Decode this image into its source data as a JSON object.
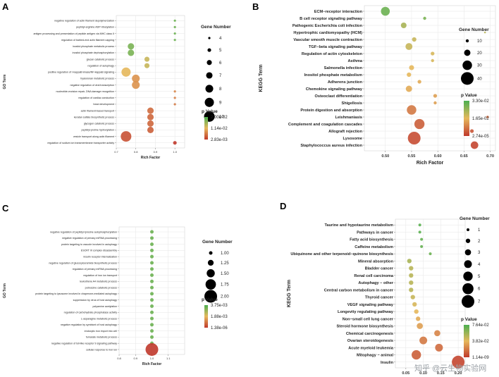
{
  "colors": {
    "high": "#4caf50",
    "mid": "#e6b85c",
    "low": "#c0392b",
    "grid": "#e6e6e6",
    "bg": "#ffffff"
  },
  "watermark": "知乎 @云生物实验网",
  "chart_data": [
    {
      "panel": "A",
      "type": "scatter",
      "xlabel": "Rich Factor",
      "ylabel": "GO Term",
      "xlim": [
        0.7,
        1.05
      ],
      "xticks": [
        "0.7",
        "0.8",
        "0.9",
        "1.0"
      ],
      "xtick_values": [
        0.7,
        0.8,
        0.9,
        1.0
      ],
      "size_title": "Gene Number",
      "size_labels": [
        "4",
        "5",
        "6",
        "7",
        "8",
        "9",
        "10"
      ],
      "size_values": [
        4,
        5,
        6,
        7,
        8,
        9,
        10
      ],
      "color_title": "p Value",
      "color_labels": [
        "2.00e-02",
        "1.14e-02",
        "2.83e-03"
      ],
      "terms": [
        "negative regulation of actin filament depolymerization",
        "peptidyl-arginine ADP-ribosylation",
        "antigen processing and presentation of peptide antigen via MHC class II",
        "regulation of barbed-end actin filament capping",
        "inositol phosphate metabolic process",
        "inositol phosphate dephosphorylation",
        "glucan catabolic process",
        "regulation of autophagy",
        "positive regulation of I-kappaB kinase/NF-kappaB signaling",
        "hyaluronan metabolic process",
        "negative regulation of viral transcription",
        "nucleotide-excision repair, DNA damage recognition",
        "regulation of cardiac conduction",
        "head development",
        "actin filament-based transport",
        "keratan sulfate biosynthetic process",
        "glycogen catabolic process",
        "peptidyl-proline hydroxylation",
        "vesicle transport along actin filament",
        "regulation of sodium ion transmembrane transporter activity"
      ],
      "x": [
        1.0,
        1.0,
        1.0,
        1.0,
        0.775,
        0.775,
        0.857,
        0.857,
        0.75,
        0.8,
        0.8,
        1.0,
        1.0,
        1.0,
        0.875,
        0.875,
        0.875,
        0.875,
        0.75,
        1.0
      ],
      "genes": [
        4,
        4,
        4,
        4,
        7,
        7,
        6,
        6,
        9,
        8,
        8,
        4,
        4,
        4,
        7,
        7,
        7,
        7,
        10,
        5
      ],
      "color": [
        0.1,
        0.1,
        0.1,
        0.1,
        0.15,
        0.15,
        0.4,
        0.4,
        0.5,
        0.65,
        0.65,
        0.7,
        0.72,
        0.75,
        0.8,
        0.82,
        0.82,
        0.85,
        0.9,
        1.0
      ]
    },
    {
      "panel": "B",
      "type": "scatter",
      "xlabel": "Rich Factor",
      "ylabel": "KEGG Term",
      "xlim": [
        0.46,
        0.71
      ],
      "xticks": [
        "0.50",
        "0.55",
        "0.60",
        "0.65",
        "0.70"
      ],
      "xtick_values": [
        0.5,
        0.55,
        0.6,
        0.65,
        0.7
      ],
      "size_title": "Gene Number",
      "size_labels": [
        "10",
        "20",
        "30",
        "40"
      ],
      "size_values": [
        10,
        20,
        30,
        40
      ],
      "color_title": "p Value",
      "color_labels": [
        "3.30e-02",
        "1.65e-02",
        "2.74e-05"
      ],
      "terms": [
        "ECM−receptor interaction",
        "B cell receptor signaling pathway",
        "Pathogenic Escherichia coli infection",
        "Hypertrophic cardiomyopathy (HCM)",
        "Vascular smooth muscle contraction",
        "TGF−beta signaling pathway",
        "Regulation of actin cytoskeleton",
        "Asthma",
        "Salmonella infection",
        "Inositol phosphate metabolism",
        "Adherens junction",
        "Chemokine signaling pathway",
        "Osteoclast differentiation",
        "Shigellosis",
        "Protein digestion and absorption",
        "Leishmaniasis",
        "Complement and coagulation cascades",
        "Allograft rejection",
        "Lysosome",
        "Staphylococcus aureus infection"
      ],
      "x": [
        0.5,
        0.575,
        0.535,
        0.69,
        0.555,
        0.545,
        0.59,
        0.59,
        0.55,
        0.545,
        0.565,
        0.545,
        0.595,
        0.595,
        0.55,
        0.695,
        0.565,
        0.665,
        0.555,
        0.67
      ],
      "genes": [
        28,
        10,
        18,
        6,
        14,
        22,
        12,
        10,
        16,
        14,
        12,
        20,
        12,
        10,
        30,
        8,
        32,
        12,
        40,
        24
      ],
      "color": [
        0.1,
        0.15,
        0.3,
        0.35,
        0.4,
        0.4,
        0.45,
        0.45,
        0.5,
        0.5,
        0.55,
        0.55,
        0.6,
        0.6,
        0.75,
        0.8,
        0.85,
        0.88,
        0.92,
        0.95
      ]
    },
    {
      "panel": "C",
      "type": "scatter",
      "xlabel": "Rich Factor",
      "ylabel": "GO Term",
      "xlim": [
        0.8,
        1.2
      ],
      "xticks": [
        "0.8",
        "0.9",
        "1.0",
        "1.1"
      ],
      "xtick_values": [
        0.8,
        0.9,
        1.0,
        1.1
      ],
      "size_title": "Gene Number",
      "size_labels": [
        "1.00",
        "1.25",
        "1.50",
        "1.75",
        "2.00"
      ],
      "size_values": [
        1.0,
        1.25,
        1.5,
        1.75,
        2.0
      ],
      "color_title": "p Value",
      "color_labels": [
        "3.75e-03",
        "1.88e-03",
        "1.38e-06"
      ],
      "terms": [
        "negative regulation of peptidyl-tyrosine autophosphorylation",
        "negative regulation of primary miRNA processing",
        "protein targeting to vacuole involved in autophagy",
        "ESCRT III complex disassembly",
        "insulin receptor internalization",
        "negative regulation of glucosylceramide biosynthetic process",
        "regulation of primary miRNA processing",
        "regulation of iron ion transport",
        "leukotriene A4 metabolic process",
        "putrescine catabolic process",
        "protein targeting to lysosome involved in chaperone-mediated autophagy",
        "suppression by virus of host autophagy",
        "polyamine acetylation",
        "regulation of carbohydrate phosphatase activity",
        "L-asparagine metabolic process",
        "negative regulation by symbiont of host autophagy",
        "endocytic iron import into cell",
        "fumarate metabolic process",
        "negative regulation of toll-like receptor 9 signaling pathway",
        "cellular response to iron ion"
      ],
      "x": [
        1.0,
        1.0,
        1.0,
        1.0,
        1.0,
        1.0,
        1.0,
        1.0,
        1.0,
        1.0,
        1.0,
        1.0,
        1.0,
        1.0,
        1.0,
        1.0,
        1.0,
        1.0,
        1.0,
        1.0
      ],
      "genes": [
        1,
        1,
        1,
        1,
        1,
        1,
        1,
        1,
        1,
        1,
        1,
        1,
        1,
        1,
        1,
        1,
        1,
        1,
        1,
        2
      ],
      "color": [
        0.1,
        0.1,
        0.1,
        0.1,
        0.1,
        0.1,
        0.1,
        0.1,
        0.1,
        0.1,
        0.1,
        0.1,
        0.1,
        0.1,
        0.1,
        0.1,
        0.1,
        0.1,
        0.1,
        1.0
      ]
    },
    {
      "panel": "D",
      "type": "scatter",
      "xlabel": "Rich Factor",
      "ylabel": "KEGG Term",
      "xlim": [
        0.02,
        0.22
      ],
      "xticks": [
        "0.05",
        "0.10",
        "0.15",
        "0.20"
      ],
      "xtick_values": [
        0.05,
        0.1,
        0.15,
        0.2
      ],
      "size_title": "Gene Number",
      "size_labels": [
        "1",
        "2",
        "3",
        "4",
        "5",
        "6",
        "7"
      ],
      "size_values": [
        1,
        2,
        3,
        4,
        5,
        6,
        7
      ],
      "color_title": "p Value",
      "color_labels": [
        "7.64e-02",
        "3.82e-02",
        "1.14e-09"
      ],
      "terms": [
        "Taurine and hypotaurine metabolism",
        "Pathways in cancer",
        "Fatty acid biosynthesis",
        "Caffeine metabolism",
        "Ubiquinone and other terpenoid−quinone biosynthesis",
        "Mineral absorption",
        "Bladder cancer",
        "Renal cell carcinoma",
        "Autophagy − other",
        "Central carbon metabolism in cancer",
        "Thyroid cancer",
        "VEGF signaling pathway",
        "Longevity regulating pathway",
        "Non−small cell lung cancer",
        "Steroid hormone biosynthesis",
        "Chemical carcinogenesis",
        "Ovarian steroidogenesis",
        "Acute myeloid leukemia",
        "Mitophagy − animal",
        "Insulin"
      ],
      "x": [
        0.09,
        0.09,
        0.095,
        0.095,
        0.12,
        0.06,
        0.065,
        0.065,
        0.065,
        0.065,
        0.07,
        0.075,
        0.08,
        0.085,
        0.09,
        0.14,
        0.1,
        0.145,
        0.08,
        0.2
      ],
      "genes": [
        1,
        1,
        1,
        1,
        1,
        2,
        2,
        2,
        2,
        2,
        2,
        2,
        2,
        2,
        3,
        3,
        4,
        4,
        5,
        7
      ],
      "color": [
        0.05,
        0.05,
        0.08,
        0.08,
        0.1,
        0.3,
        0.35,
        0.35,
        0.35,
        0.35,
        0.4,
        0.45,
        0.5,
        0.55,
        0.6,
        0.7,
        0.75,
        0.8,
        0.85,
        0.95
      ]
    }
  ]
}
